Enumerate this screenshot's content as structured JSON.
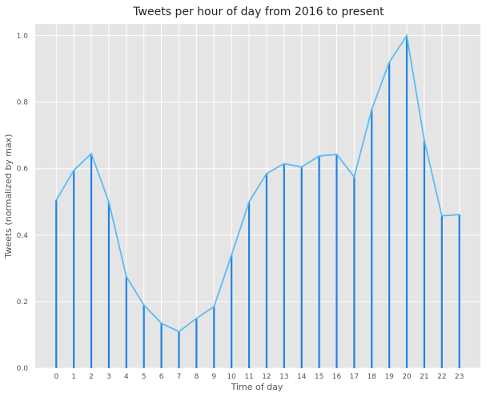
{
  "chart_data": {
    "type": "line",
    "title": "Tweets per hour of day from 2016 to present",
    "xlabel": "Time of day",
    "ylabel": "Tweets (normalized by max)",
    "x": [
      0,
      1,
      2,
      3,
      4,
      5,
      6,
      7,
      8,
      9,
      10,
      11,
      12,
      13,
      14,
      15,
      16,
      17,
      18,
      19,
      20,
      21,
      22,
      23
    ],
    "x_tick_labels": [
      "0",
      "1",
      "2",
      "3",
      "4",
      "5",
      "6",
      "7",
      "8",
      "9",
      "10",
      "11",
      "12",
      "13",
      "14",
      "15",
      "16",
      "17",
      "18",
      "19",
      "20",
      "21",
      "22",
      "23"
    ],
    "y_tick_labels": [
      "0.0",
      "0.2",
      "0.4",
      "0.6",
      "0.8",
      "1.0"
    ],
    "y_ticks": [
      0,
      0.2,
      0.4,
      0.6,
      0.8,
      1.0
    ],
    "values": [
      0.505,
      0.595,
      0.645,
      0.5,
      0.275,
      0.19,
      0.135,
      0.11,
      0.15,
      0.185,
      0.34,
      0.5,
      0.585,
      0.615,
      0.605,
      0.638,
      0.643,
      0.575,
      0.778,
      0.92,
      1.0,
      0.685,
      0.458,
      0.462
    ],
    "ylim": [
      0,
      1.035
    ],
    "xlim": [
      -1.2,
      24.2
    ],
    "grid": true,
    "colors": {
      "line": "#5bbcf5",
      "bars": "#1f83e6",
      "background": "#e5e5e5",
      "grid": "#ffffff"
    }
  }
}
